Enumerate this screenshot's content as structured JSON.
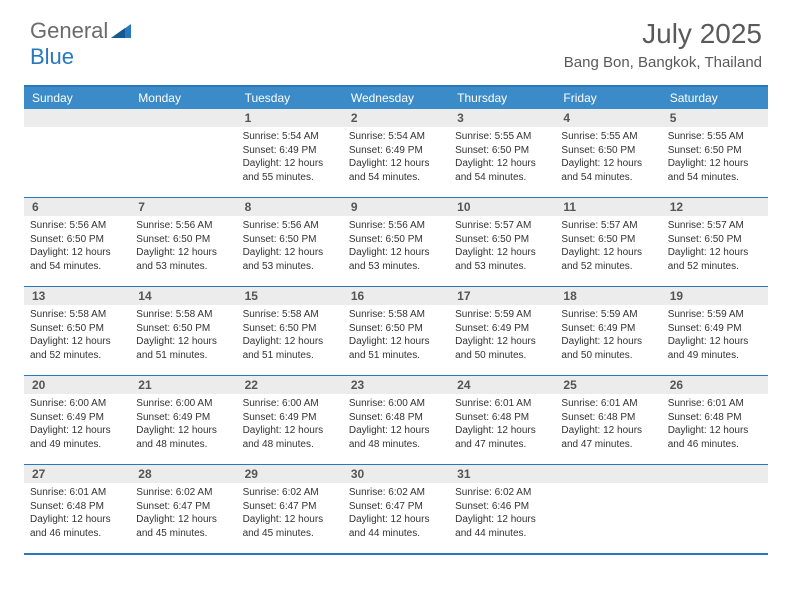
{
  "brand": {
    "part1": "General",
    "part2": "Blue"
  },
  "title": "July 2025",
  "location": "Bang Bon, Bangkok, Thailand",
  "colors": {
    "header_bg": "#3b8bc9",
    "border": "#2878bd",
    "daynum_bg": "#ececec",
    "text": "#333333",
    "title_text": "#5a5a5a"
  },
  "dayNames": [
    "Sunday",
    "Monday",
    "Tuesday",
    "Wednesday",
    "Thursday",
    "Friday",
    "Saturday"
  ],
  "weeks": [
    [
      {
        "n": "",
        "sr": "",
        "ss": "",
        "dl": ""
      },
      {
        "n": "",
        "sr": "",
        "ss": "",
        "dl": ""
      },
      {
        "n": "1",
        "sr": "Sunrise: 5:54 AM",
        "ss": "Sunset: 6:49 PM",
        "dl": "Daylight: 12 hours and 55 minutes."
      },
      {
        "n": "2",
        "sr": "Sunrise: 5:54 AM",
        "ss": "Sunset: 6:49 PM",
        "dl": "Daylight: 12 hours and 54 minutes."
      },
      {
        "n": "3",
        "sr": "Sunrise: 5:55 AM",
        "ss": "Sunset: 6:50 PM",
        "dl": "Daylight: 12 hours and 54 minutes."
      },
      {
        "n": "4",
        "sr": "Sunrise: 5:55 AM",
        "ss": "Sunset: 6:50 PM",
        "dl": "Daylight: 12 hours and 54 minutes."
      },
      {
        "n": "5",
        "sr": "Sunrise: 5:55 AM",
        "ss": "Sunset: 6:50 PM",
        "dl": "Daylight: 12 hours and 54 minutes."
      }
    ],
    [
      {
        "n": "6",
        "sr": "Sunrise: 5:56 AM",
        "ss": "Sunset: 6:50 PM",
        "dl": "Daylight: 12 hours and 54 minutes."
      },
      {
        "n": "7",
        "sr": "Sunrise: 5:56 AM",
        "ss": "Sunset: 6:50 PM",
        "dl": "Daylight: 12 hours and 53 minutes."
      },
      {
        "n": "8",
        "sr": "Sunrise: 5:56 AM",
        "ss": "Sunset: 6:50 PM",
        "dl": "Daylight: 12 hours and 53 minutes."
      },
      {
        "n": "9",
        "sr": "Sunrise: 5:56 AM",
        "ss": "Sunset: 6:50 PM",
        "dl": "Daylight: 12 hours and 53 minutes."
      },
      {
        "n": "10",
        "sr": "Sunrise: 5:57 AM",
        "ss": "Sunset: 6:50 PM",
        "dl": "Daylight: 12 hours and 53 minutes."
      },
      {
        "n": "11",
        "sr": "Sunrise: 5:57 AM",
        "ss": "Sunset: 6:50 PM",
        "dl": "Daylight: 12 hours and 52 minutes."
      },
      {
        "n": "12",
        "sr": "Sunrise: 5:57 AM",
        "ss": "Sunset: 6:50 PM",
        "dl": "Daylight: 12 hours and 52 minutes."
      }
    ],
    [
      {
        "n": "13",
        "sr": "Sunrise: 5:58 AM",
        "ss": "Sunset: 6:50 PM",
        "dl": "Daylight: 12 hours and 52 minutes."
      },
      {
        "n": "14",
        "sr": "Sunrise: 5:58 AM",
        "ss": "Sunset: 6:50 PM",
        "dl": "Daylight: 12 hours and 51 minutes."
      },
      {
        "n": "15",
        "sr": "Sunrise: 5:58 AM",
        "ss": "Sunset: 6:50 PM",
        "dl": "Daylight: 12 hours and 51 minutes."
      },
      {
        "n": "16",
        "sr": "Sunrise: 5:58 AM",
        "ss": "Sunset: 6:50 PM",
        "dl": "Daylight: 12 hours and 51 minutes."
      },
      {
        "n": "17",
        "sr": "Sunrise: 5:59 AM",
        "ss": "Sunset: 6:49 PM",
        "dl": "Daylight: 12 hours and 50 minutes."
      },
      {
        "n": "18",
        "sr": "Sunrise: 5:59 AM",
        "ss": "Sunset: 6:49 PM",
        "dl": "Daylight: 12 hours and 50 minutes."
      },
      {
        "n": "19",
        "sr": "Sunrise: 5:59 AM",
        "ss": "Sunset: 6:49 PM",
        "dl": "Daylight: 12 hours and 49 minutes."
      }
    ],
    [
      {
        "n": "20",
        "sr": "Sunrise: 6:00 AM",
        "ss": "Sunset: 6:49 PM",
        "dl": "Daylight: 12 hours and 49 minutes."
      },
      {
        "n": "21",
        "sr": "Sunrise: 6:00 AM",
        "ss": "Sunset: 6:49 PM",
        "dl": "Daylight: 12 hours and 48 minutes."
      },
      {
        "n": "22",
        "sr": "Sunrise: 6:00 AM",
        "ss": "Sunset: 6:49 PM",
        "dl": "Daylight: 12 hours and 48 minutes."
      },
      {
        "n": "23",
        "sr": "Sunrise: 6:00 AM",
        "ss": "Sunset: 6:48 PM",
        "dl": "Daylight: 12 hours and 48 minutes."
      },
      {
        "n": "24",
        "sr": "Sunrise: 6:01 AM",
        "ss": "Sunset: 6:48 PM",
        "dl": "Daylight: 12 hours and 47 minutes."
      },
      {
        "n": "25",
        "sr": "Sunrise: 6:01 AM",
        "ss": "Sunset: 6:48 PM",
        "dl": "Daylight: 12 hours and 47 minutes."
      },
      {
        "n": "26",
        "sr": "Sunrise: 6:01 AM",
        "ss": "Sunset: 6:48 PM",
        "dl": "Daylight: 12 hours and 46 minutes."
      }
    ],
    [
      {
        "n": "27",
        "sr": "Sunrise: 6:01 AM",
        "ss": "Sunset: 6:48 PM",
        "dl": "Daylight: 12 hours and 46 minutes."
      },
      {
        "n": "28",
        "sr": "Sunrise: 6:02 AM",
        "ss": "Sunset: 6:47 PM",
        "dl": "Daylight: 12 hours and 45 minutes."
      },
      {
        "n": "29",
        "sr": "Sunrise: 6:02 AM",
        "ss": "Sunset: 6:47 PM",
        "dl": "Daylight: 12 hours and 45 minutes."
      },
      {
        "n": "30",
        "sr": "Sunrise: 6:02 AM",
        "ss": "Sunset: 6:47 PM",
        "dl": "Daylight: 12 hours and 44 minutes."
      },
      {
        "n": "31",
        "sr": "Sunrise: 6:02 AM",
        "ss": "Sunset: 6:46 PM",
        "dl": "Daylight: 12 hours and 44 minutes."
      },
      {
        "n": "",
        "sr": "",
        "ss": "",
        "dl": ""
      },
      {
        "n": "",
        "sr": "",
        "ss": "",
        "dl": ""
      }
    ]
  ]
}
